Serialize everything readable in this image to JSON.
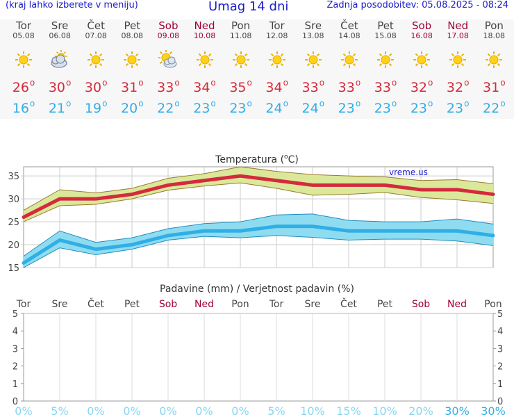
{
  "header": {
    "left_note": "(kraj lahko izberete v meniju)",
    "title": "Umag 14 dni",
    "updated": "Zadnja posodobitev: 05.08.2025 - 08:24"
  },
  "days": [
    {
      "name": "Tor",
      "date": "05.08",
      "icon": "sun-icon",
      "max": "26",
      "min": "16",
      "weekend": false
    },
    {
      "name": "Sre",
      "date": "06.08",
      "icon": "partly-cloudy-icon",
      "max": "30",
      "min": "21",
      "weekend": false
    },
    {
      "name": "Čet",
      "date": "07.08",
      "icon": "sun-icon",
      "max": "30",
      "min": "19",
      "weekend": false
    },
    {
      "name": "Pet",
      "date": "08.08",
      "icon": "sun-icon",
      "max": "31",
      "min": "20",
      "weekend": false
    },
    {
      "name": "Sob",
      "date": "09.08",
      "icon": "sun-cloud-icon",
      "max": "33",
      "min": "22",
      "weekend": true
    },
    {
      "name": "Ned",
      "date": "10.08",
      "icon": "sun-icon",
      "max": "34",
      "min": "23",
      "weekend": true
    },
    {
      "name": "Pon",
      "date": "11.08",
      "icon": "sun-icon",
      "max": "35",
      "min": "23",
      "weekend": false
    },
    {
      "name": "Tor",
      "date": "12.08",
      "icon": "sun-icon",
      "max": "34",
      "min": "24",
      "weekend": false
    },
    {
      "name": "Sre",
      "date": "13.08",
      "icon": "sun-icon",
      "max": "33",
      "min": "24",
      "weekend": false
    },
    {
      "name": "Čet",
      "date": "14.08",
      "icon": "sun-icon",
      "max": "33",
      "min": "23",
      "weekend": false
    },
    {
      "name": "Pet",
      "date": "15.08",
      "icon": "sun-icon",
      "max": "33",
      "min": "23",
      "weekend": false
    },
    {
      "name": "Sob",
      "date": "16.08",
      "icon": "sun-icon",
      "max": "32",
      "min": "23",
      "weekend": true
    },
    {
      "name": "Ned",
      "date": "17.08",
      "icon": "sun-icon",
      "max": "32",
      "min": "23",
      "weekend": true
    },
    {
      "name": "Pon",
      "date": "18.08",
      "icon": "sun-icon",
      "max": "31",
      "min": "22",
      "weekend": false
    }
  ],
  "colors": {
    "max": "#d42a3c",
    "min": "#30aee6",
    "maxBand": "#dbe89a",
    "minBand": "#8fdcf0",
    "weekend": "#a0003a",
    "precipPct": "#8ad6f0",
    "precipPctStrong": "#30aee6"
  },
  "chart_data": [
    {
      "type": "line",
      "title": "Temperatura (°C)",
      "title_prefix": "Temperatura (",
      "title_unit": "C)",
      "title_deg": "o",
      "watermark": "vreme.us",
      "ylim": [
        15,
        37
      ],
      "yticks": [
        "15",
        "20",
        "25",
        "30",
        "35"
      ],
      "x": [
        0,
        1,
        2,
        3,
        4,
        5,
        6,
        7,
        8,
        9,
        10,
        11,
        12,
        13
      ],
      "series": [
        {
          "name": "max",
          "values": [
            26,
            30,
            30,
            31,
            33,
            34,
            35,
            34,
            33,
            33,
            33,
            32,
            32,
            31
          ],
          "upper": [
            27.5,
            32,
            31.3,
            32.3,
            34.5,
            35.5,
            37,
            36,
            35.3,
            35,
            34.8,
            34,
            34.2,
            33.3
          ],
          "lower": [
            25,
            28.5,
            28.8,
            30,
            31.9,
            32.8,
            33.5,
            32.3,
            30.8,
            31,
            31.4,
            30.3,
            29.8,
            29
          ]
        },
        {
          "name": "min",
          "values": [
            16,
            21,
            19,
            20,
            22,
            23,
            23,
            24,
            24,
            23,
            23,
            23,
            23,
            22
          ],
          "upper": [
            17.5,
            23,
            20.5,
            21.5,
            23.5,
            24.6,
            25,
            26.5,
            26.7,
            25.3,
            25,
            25,
            25.6,
            24.5
          ],
          "lower": [
            15,
            19.3,
            17.8,
            19,
            21,
            21.8,
            21.5,
            22,
            21.6,
            21,
            21.2,
            21.2,
            20.8,
            19.8
          ]
        }
      ]
    },
    {
      "type": "bar",
      "title": "Padavine (mm) / Verjetnost padavin (%)",
      "categories": [
        "Tor",
        "Sre",
        "Čet",
        "Pet",
        "Sob",
        "Ned",
        "Pon",
        "Tor",
        "Sre",
        "Čet",
        "Pet",
        "Sob",
        "Ned",
        "Pon"
      ],
      "weekend_flags": [
        false,
        false,
        false,
        false,
        true,
        true,
        false,
        false,
        false,
        false,
        false,
        true,
        true,
        false
      ],
      "precip_mm": [
        0,
        0,
        0,
        0,
        0,
        0,
        0,
        0,
        0,
        0,
        0,
        0,
        0,
        0
      ],
      "probability_labels": [
        "0%",
        "5%",
        "0%",
        "0%",
        "0%",
        "0%",
        "0%",
        "5%",
        "10%",
        "15%",
        "10%",
        "20%",
        "30%",
        "30%"
      ],
      "probability_strong": [
        false,
        false,
        false,
        false,
        false,
        false,
        false,
        false,
        false,
        false,
        false,
        false,
        true,
        true
      ],
      "ylim": [
        0,
        5
      ],
      "yticks": [
        "0",
        "1",
        "2",
        "3",
        "4",
        "5"
      ]
    }
  ]
}
